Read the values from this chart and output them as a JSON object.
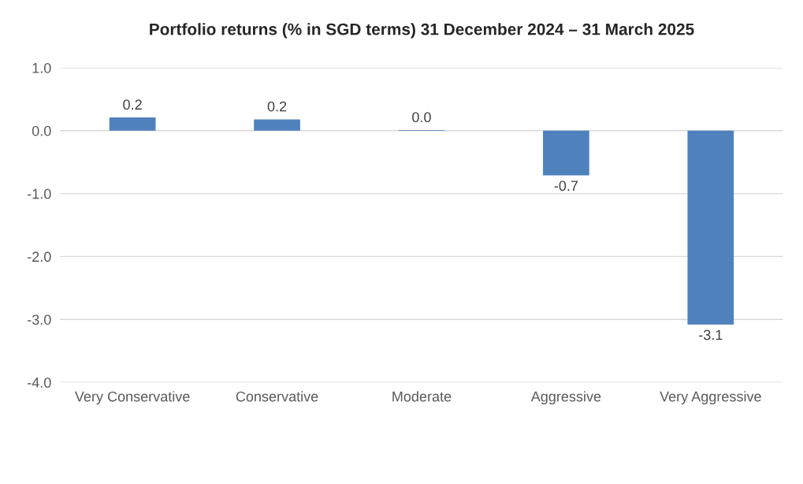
{
  "chart_data": {
    "type": "bar",
    "title": "Portfolio returns (% in SGD terms) 31 December 2024 – 31 March 2025",
    "categories": [
      "Very Conservative",
      "Conservative",
      "Moderate",
      "Aggressive",
      "Very Aggressive"
    ],
    "values": [
      0.21,
      0.18,
      0.01,
      -0.71,
      -3.08
    ],
    "value_labels": [
      "0.2",
      "0.2",
      "0.0",
      "-0.7",
      "-3.1"
    ],
    "color": "#4f81bd",
    "ylim": [
      -4,
      1
    ],
    "yticks": [
      {
        "value": -4,
        "label": "-4.0"
      },
      {
        "value": -3,
        "label": "-3.0"
      },
      {
        "value": -2,
        "label": "-2.0"
      },
      {
        "value": -1,
        "label": "-1.0"
      },
      {
        "value": 0,
        "label": "0.0"
      },
      {
        "value": 1,
        "label": "1.0"
      }
    ],
    "grid": "y"
  }
}
